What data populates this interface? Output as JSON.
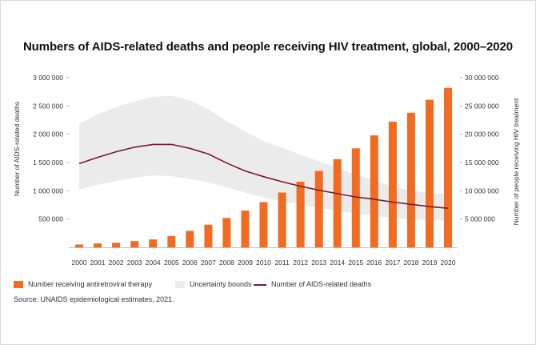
{
  "chart_data": {
    "type": "bar+line",
    "title": "Numbers of AIDS-related deaths and people receiving HIV treatment, global, 2000–2020",
    "ylabel_left": "Number of AIDS-related deaths",
    "ylabel_right": "Number of people receiving HIV treatment",
    "ylim_left": [
      0,
      3000000
    ],
    "ylim_right": [
      0,
      30000000
    ],
    "yticks_left": [
      "3 000 000",
      "2 500 000",
      "2 000 000",
      "1 500 000",
      "1 000 000",
      "500 000"
    ],
    "yticks_right": [
      "30 000 000",
      "25 000 000",
      "20 000 000",
      "15 000 000",
      "10 000 000",
      "5 000 000"
    ],
    "categories": [
      "2000",
      "2001",
      "2002",
      "2003",
      "2004",
      "2005",
      "2006",
      "2007",
      "2008",
      "2009",
      "2010",
      "2011",
      "2012",
      "2013",
      "2014",
      "2015",
      "2016",
      "2017",
      "2018",
      "2019",
      "2020"
    ],
    "series": [
      {
        "name": "Number receiving antiretroviral therapy",
        "type": "bar",
        "axis": "right",
        "color": "#f26b21",
        "values": [
          500000,
          700000,
          800000,
          1100000,
          1400000,
          2000000,
          2900000,
          4000000,
          5200000,
          6500000,
          8000000,
          9700000,
          11600000,
          13500000,
          15600000,
          17500000,
          19800000,
          22200000,
          23800000,
          26100000,
          28200000
        ]
      },
      {
        "name": "Uncertainty bounds",
        "type": "band",
        "axis": "left",
        "color": "#ebebeb",
        "upper": [
          2180000,
          2350000,
          2480000,
          2580000,
          2660000,
          2680000,
          2600000,
          2440000,
          2230000,
          2050000,
          1880000,
          1760000,
          1640000,
          1520000,
          1400000,
          1280000,
          1180000,
          1080000,
          1000000,
          960000,
          940000
        ],
        "lower": [
          1020000,
          1110000,
          1170000,
          1230000,
          1270000,
          1260000,
          1210000,
          1150000,
          1060000,
          970000,
          880000,
          810000,
          760000,
          700000,
          640000,
          600000,
          560000,
          520000,
          500000,
          480000,
          470000
        ]
      },
      {
        "name": "Number of AIDS-related deaths",
        "type": "line",
        "axis": "left",
        "color": "#7b1a2e",
        "values": [
          1480000,
          1590000,
          1690000,
          1770000,
          1820000,
          1820000,
          1750000,
          1650000,
          1490000,
          1350000,
          1250000,
          1160000,
          1080000,
          1010000,
          950000,
          890000,
          850000,
          800000,
          760000,
          720000,
          690000
        ]
      }
    ]
  },
  "legend": {
    "bars": "Number receiving antiretroviral therapy",
    "band": "Uncertainty bounds",
    "line": "Number of AIDS-related deaths"
  },
  "source": "Source: UNAIDS epidemiological estimates, 2021."
}
